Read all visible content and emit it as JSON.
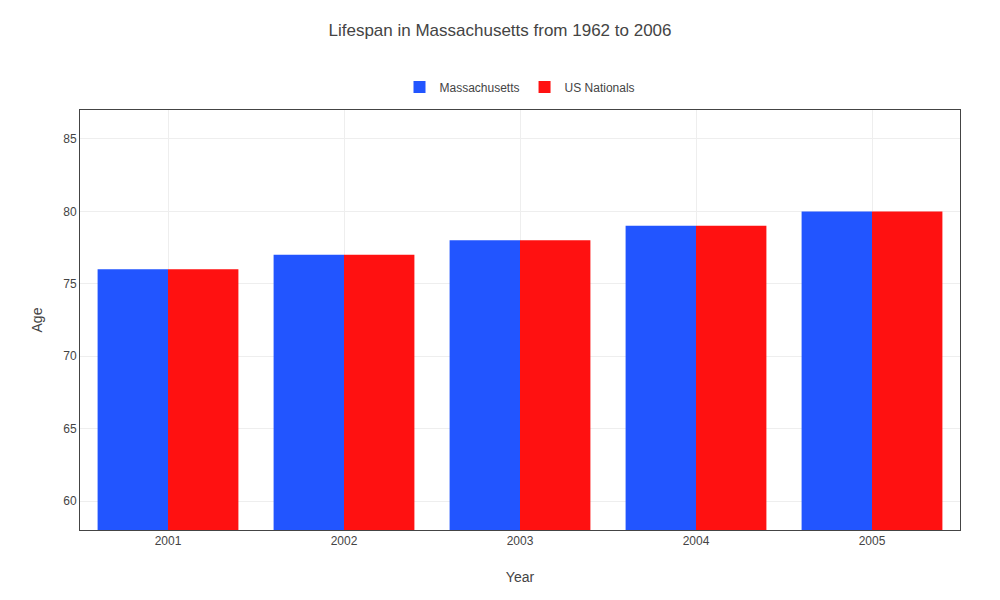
{
  "chart_data": {
    "type": "bar",
    "title": "Lifespan in Massachusetts from 1962 to 2006",
    "xlabel": "Year",
    "ylabel": "Age",
    "categories": [
      "2001",
      "2002",
      "2003",
      "2004",
      "2005"
    ],
    "series": [
      {
        "name": "Massachusetts",
        "color": "#2255ff",
        "values": [
          76,
          77,
          78,
          79,
          80
        ]
      },
      {
        "name": "US Nationals",
        "color": "#ff1111",
        "values": [
          76,
          77,
          78,
          79,
          80
        ]
      }
    ],
    "ylim": [
      58,
      87
    ],
    "yticks": [
      60,
      65,
      70,
      75,
      80,
      85
    ],
    "grid": true,
    "legend": "top"
  }
}
